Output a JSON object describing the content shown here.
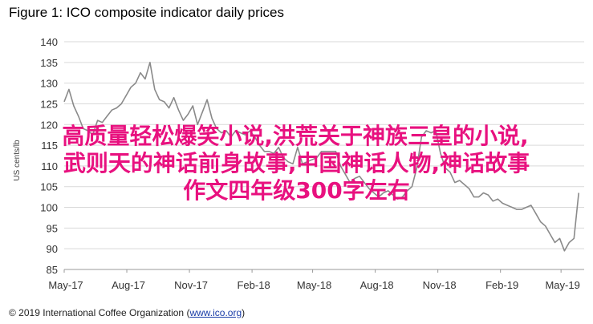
{
  "figure_title": "Figure 1: ICO composite indicator daily prices",
  "copyright": "© 2019 International Coffee Organization",
  "copyright_link": "www.ico.org",
  "overlay": {
    "color": "#e8117f",
    "lines": [
      "高质量轻松爆笑小说,洪荒关于神族三皇的小说,",
      "武则天的神话前身故事,中国神话人物,神话故事",
      "作文四年级300字左右"
    ]
  },
  "chart_data": {
    "type": "line",
    "title": "Figure 1: ICO composite indicator daily prices",
    "xlabel": "",
    "ylabel": "US cents/lb",
    "ylim": [
      85,
      140
    ],
    "yticks": [
      85,
      90,
      95,
      100,
      105,
      110,
      115,
      120,
      125,
      130,
      135,
      140
    ],
    "xticks": [
      "May-17",
      "Aug-17",
      "Nov-17",
      "Feb-18",
      "May-18",
      "Aug-18",
      "Nov-18",
      "Feb-19",
      "May-19"
    ],
    "grid": true,
    "line_color": "#8a8a8a",
    "series": [
      {
        "x": [
          "2017-05-01",
          "2017-05-08",
          "2017-05-15",
          "2017-05-22",
          "2017-05-29",
          "2017-06-05",
          "2017-06-12",
          "2017-06-19",
          "2017-06-26",
          "2017-07-03",
          "2017-07-10",
          "2017-07-17",
          "2017-07-24",
          "2017-07-31",
          "2017-08-07",
          "2017-08-14",
          "2017-08-21",
          "2017-08-28",
          "2017-09-04",
          "2017-09-11",
          "2017-09-18",
          "2017-09-25",
          "2017-10-02",
          "2017-10-09",
          "2017-10-16",
          "2017-10-23",
          "2017-10-30",
          "2017-11-06",
          "2017-11-13",
          "2017-11-20",
          "2017-11-27",
          "2017-12-04",
          "2017-12-11",
          "2017-12-18",
          "2017-12-25",
          "2018-01-01",
          "2018-01-08",
          "2018-01-15",
          "2018-01-22",
          "2018-01-29",
          "2018-02-05",
          "2018-02-12",
          "2018-02-19",
          "2018-02-26",
          "2018-03-05",
          "2018-03-12",
          "2018-03-19",
          "2018-03-26",
          "2018-04-02",
          "2018-04-09",
          "2018-04-16",
          "2018-04-23",
          "2018-04-30",
          "2018-05-07",
          "2018-05-14",
          "2018-05-21",
          "2018-05-28",
          "2018-06-04",
          "2018-06-11",
          "2018-06-18",
          "2018-06-25",
          "2018-07-02",
          "2018-07-09",
          "2018-07-16",
          "2018-07-23",
          "2018-07-30",
          "2018-08-06",
          "2018-08-13",
          "2018-08-20",
          "2018-08-27",
          "2018-09-03",
          "2018-09-10",
          "2018-09-17",
          "2018-09-24",
          "2018-10-01",
          "2018-10-08",
          "2018-10-15",
          "2018-10-22",
          "2018-10-29",
          "2018-11-05",
          "2018-11-12",
          "2018-11-19",
          "2018-11-26",
          "2018-12-03",
          "2018-12-10",
          "2018-12-17",
          "2018-12-24",
          "2018-12-31",
          "2019-01-07",
          "2019-01-14",
          "2019-01-21",
          "2019-01-28",
          "2019-02-04",
          "2019-02-11",
          "2019-02-18",
          "2019-02-25",
          "2019-03-04",
          "2019-03-11",
          "2019-03-18",
          "2019-03-25",
          "2019-04-01",
          "2019-04-08",
          "2019-04-15",
          "2019-04-22",
          "2019-04-29",
          "2019-05-06",
          "2019-05-13",
          "2019-05-20",
          "2019-05-27"
        ],
        "y": [
          125.5,
          128.5,
          124.5,
          122.0,
          119.0,
          118.5,
          117.5,
          121.0,
          120.5,
          122.0,
          123.5,
          124.0,
          125.0,
          127.0,
          129.0,
          130.0,
          132.5,
          131.0,
          135.0,
          128.5,
          126.0,
          125.5,
          124.0,
          126.5,
          123.5,
          121.0,
          122.5,
          124.5,
          120.0,
          123.0,
          126.0,
          121.5,
          119.0,
          118.0,
          118.5,
          117.0,
          118.5,
          118.0,
          117.5,
          118.5,
          117.0,
          115.0,
          113.5,
          113.5,
          113.0,
          114.5,
          112.0,
          111.0,
          110.5,
          114.5,
          110.5,
          111.0,
          111.5,
          112.0,
          113.5,
          113.5,
          113.5,
          113.5,
          110.0,
          108.0,
          106.0,
          107.0,
          107.5,
          106.0,
          104.5,
          103.5,
          102.5,
          103.5,
          104.0,
          103.0,
          102.0,
          102.5,
          104.0,
          105.0,
          109.5,
          117.0,
          118.5,
          118.0,
          118.5,
          113.0,
          109.5,
          108.5,
          106.0,
          106.5,
          105.5,
          104.5,
          102.5,
          102.5,
          103.5,
          103.0,
          101.5,
          102.0,
          101.0,
          100.5,
          100.0,
          99.5,
          99.5,
          100.0,
          100.5,
          98.5,
          96.5,
          95.5,
          93.5,
          91.5,
          92.5,
          89.5,
          91.5,
          92.5,
          103.5
        ]
      }
    ]
  }
}
